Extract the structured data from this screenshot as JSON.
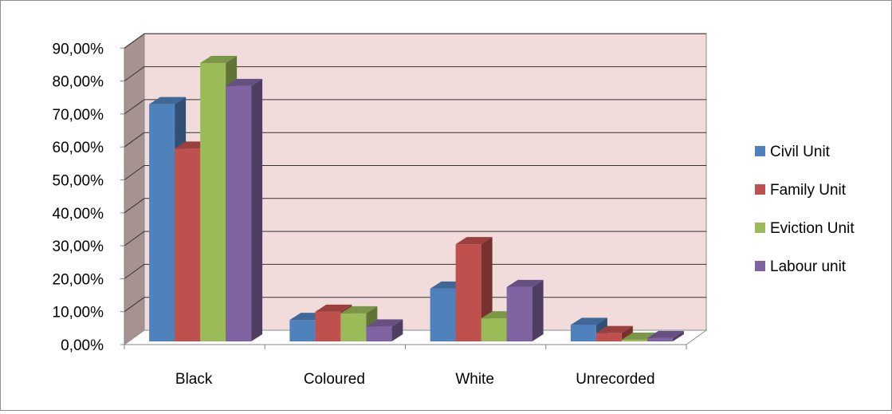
{
  "chart_data": {
    "type": "bar",
    "categories": [
      "Black",
      "Coloured",
      "White",
      "Unrecorded"
    ],
    "series": [
      {
        "name": "Civil Unit",
        "color": "#4f81bd",
        "values": [
          72.0,
          6.5,
          16.0,
          5.0
        ]
      },
      {
        "name": "Family Unit",
        "color": "#c0504d",
        "values": [
          58.5,
          9.0,
          29.5,
          2.5
        ]
      },
      {
        "name": "Eviction Unit",
        "color": "#9bbb59",
        "values": [
          84.5,
          8.5,
          7.0,
          0.5
        ]
      },
      {
        "name": "Labour unit",
        "color": "#8064a2",
        "values": [
          77.5,
          4.5,
          16.5,
          1.0
        ]
      }
    ],
    "yticks": [
      "0,00%",
      "10,00%",
      "20,00%",
      "30,00%",
      "40,00%",
      "50,00%",
      "60,00%",
      "70,00%",
      "80,00%",
      "90,00%"
    ],
    "ylim": [
      0,
      90
    ],
    "title": "",
    "xlabel": "",
    "ylabel": "",
    "grid": true,
    "legend": "right",
    "style": "3d-clustered-column",
    "wall_color": "#f2dcdb"
  }
}
